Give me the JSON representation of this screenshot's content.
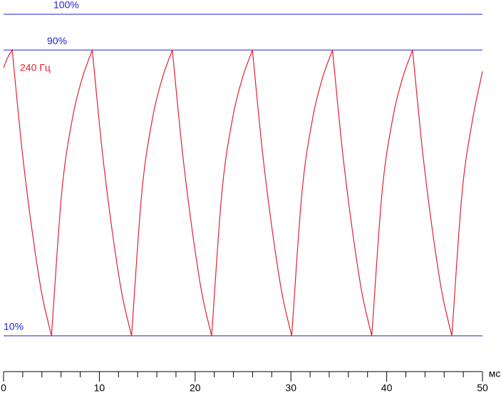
{
  "chart_data": {
    "type": "line",
    "x_unit": "мс",
    "xlim": [
      0,
      50
    ],
    "xticks": [
      0,
      10,
      20,
      30,
      40,
      50
    ],
    "xminorticks": [
      2,
      4,
      6,
      8,
      12,
      14,
      16,
      18,
      22,
      24,
      26,
      28,
      32,
      34,
      36,
      38,
      42,
      44,
      46,
      48
    ],
    "ylim": [
      0,
      100
    ],
    "yticks": [
      {
        "value": 10,
        "label": "10%"
      },
      {
        "value": 90,
        "label": "90%"
      },
      {
        "value": 100,
        "label": "100%"
      }
    ],
    "grid": true,
    "grid_color": "#2222cc",
    "axis_color": "#000000",
    "series": [
      {
        "name": "240 Гц",
        "color": "#dd2233",
        "x": [
          0,
          0.45,
          0.9,
          1.93,
          2.95,
          3.98,
          5.0,
          6.07,
          7.13,
          8.2,
          9.26,
          10.29,
          11.31,
          12.34,
          13.36,
          14.43,
          15.49,
          16.56,
          17.62,
          18.65,
          19.67,
          20.7,
          21.72,
          22.79,
          23.85,
          24.92,
          25.98,
          27.01,
          28.03,
          29.06,
          30.08,
          31.15,
          32.21,
          33.28,
          34.34,
          35.37,
          36.39,
          37.42,
          38.44,
          39.51,
          40.57,
          41.64,
          42.7,
          43.73,
          44.75,
          45.78,
          46.8,
          47.87,
          48.93,
          50
        ],
        "values": [
          85,
          88,
          90,
          62,
          40,
          22,
          10,
          50,
          70,
          82,
          90,
          62,
          40,
          22,
          10,
          50,
          70,
          82,
          90,
          62,
          40,
          22,
          10,
          50,
          70,
          82,
          90,
          62,
          40,
          22,
          10,
          50,
          70,
          82,
          90,
          62,
          40,
          22,
          10,
          50,
          70,
          82,
          90,
          62,
          40,
          22,
          10,
          50,
          70,
          84
        ]
      }
    ]
  }
}
